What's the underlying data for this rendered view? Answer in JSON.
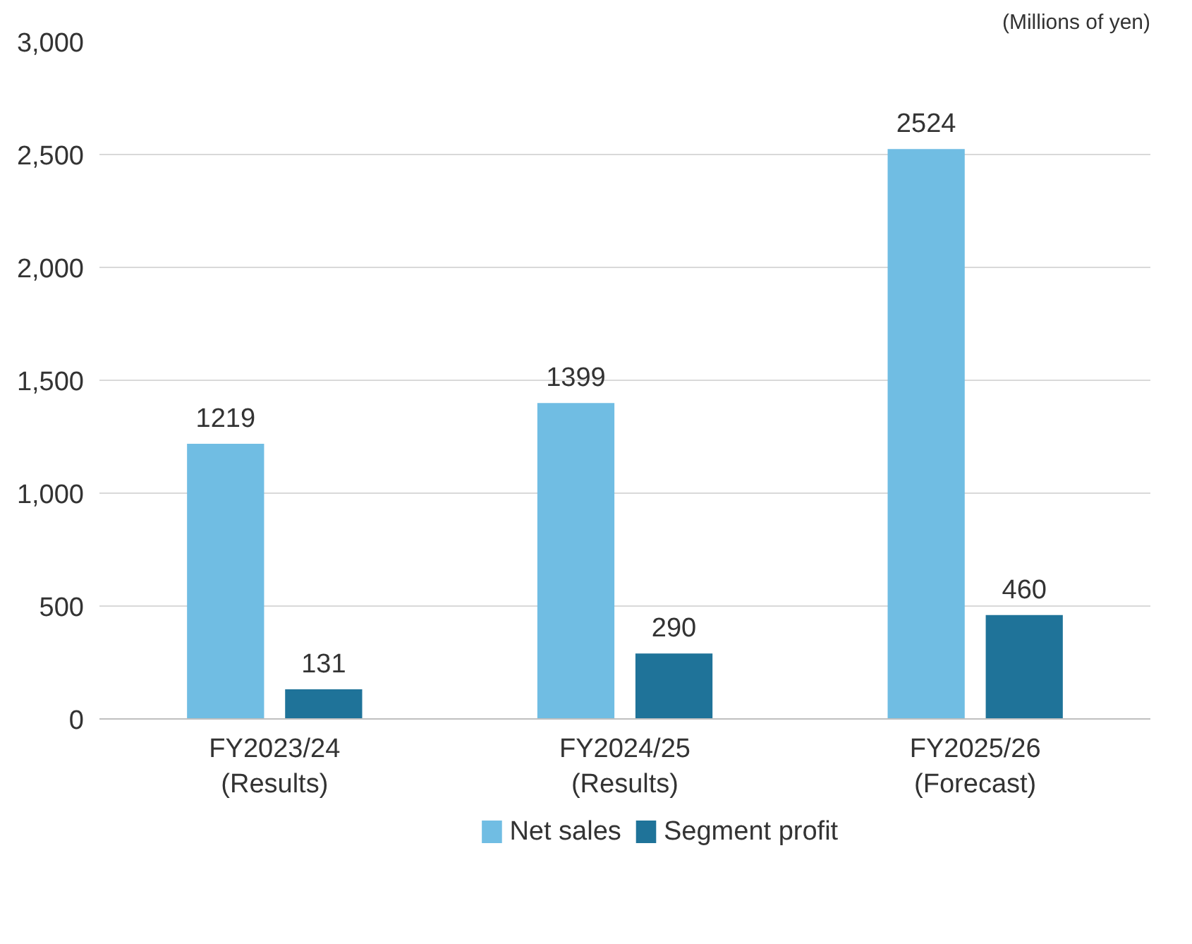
{
  "chart_data": {
    "type": "bar",
    "categories": [
      "FY2023/24\n(Results)",
      "FY2024/25\n(Results)",
      "FY2025/26\n(Forecast)"
    ],
    "series": [
      {
        "name": "Net sales",
        "color": "#70bde3",
        "values": [
          1219,
          1399,
          2524
        ]
      },
      {
        "name": "Segment profit",
        "color": "#1f7399",
        "values": [
          131,
          290,
          460
        ]
      }
    ],
    "ylim": [
      0,
      3000
    ],
    "yticks": [
      0,
      {
        "value": 500,
        "label": "500"
      },
      {
        "value": 1000,
        "label": "1,000"
      },
      {
        "value": 1500,
        "label": "1,500"
      },
      {
        "value": 2000,
        "label": "2,000"
      },
      {
        "value": 2500,
        "label": "2,500"
      },
      {
        "value": 3000,
        "label": "3,000"
      }
    ],
    "grid": "y",
    "legend": "bottom",
    "data_labels": true,
    "annotations": [
      "(Millions of yen)"
    ]
  }
}
